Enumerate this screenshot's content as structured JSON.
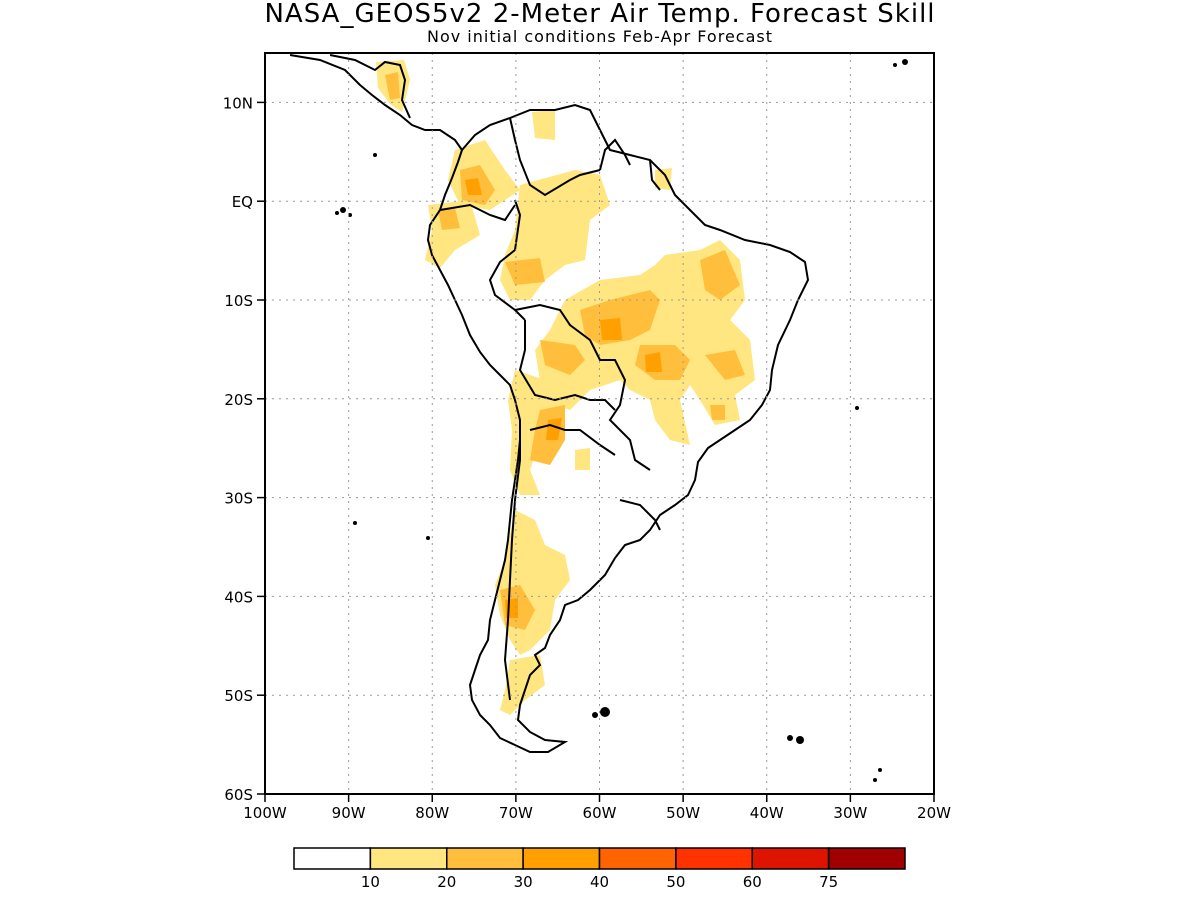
{
  "title": "NASA_GEOS5v2 2-Meter Air Temp. Forecast Skill",
  "subtitle": "Nov initial conditions  Feb-Apr Forecast",
  "map": {
    "region": "South America",
    "lon_range": [
      -100,
      -20
    ],
    "lat_range": [
      -60,
      15
    ],
    "grid": "dotted",
    "x_ticks": [
      {
        "value": -100,
        "label": "100W"
      },
      {
        "value": -90,
        "label": "90W"
      },
      {
        "value": -80,
        "label": "80W"
      },
      {
        "value": -70,
        "label": "70W"
      },
      {
        "value": -60,
        "label": "60W"
      },
      {
        "value": -50,
        "label": "50W"
      },
      {
        "value": -40,
        "label": "40W"
      },
      {
        "value": -30,
        "label": "30W"
      },
      {
        "value": -20,
        "label": "20W"
      }
    ],
    "y_ticks": [
      {
        "value": 10,
        "label": "10N"
      },
      {
        "value": 0,
        "label": "EQ"
      },
      {
        "value": -10,
        "label": "10S"
      },
      {
        "value": -20,
        "label": "20S"
      },
      {
        "value": -30,
        "label": "30S"
      },
      {
        "value": -40,
        "label": "40S"
      },
      {
        "value": -50,
        "label": "50S"
      },
      {
        "value": -60,
        "label": "60S"
      }
    ]
  },
  "colorbar": {
    "colors": [
      "#ffffff",
      "#ffe680",
      "#ffbe3c",
      "#ffa000",
      "#ff6400",
      "#ff3200",
      "#dc1400",
      "#a00000"
    ],
    "labels": [
      "10",
      "20",
      "30",
      "40",
      "50",
      "60",
      "75"
    ]
  },
  "colors": {
    "land_outline": "#000000",
    "frame": "#000000",
    "grid": "#999999"
  }
}
